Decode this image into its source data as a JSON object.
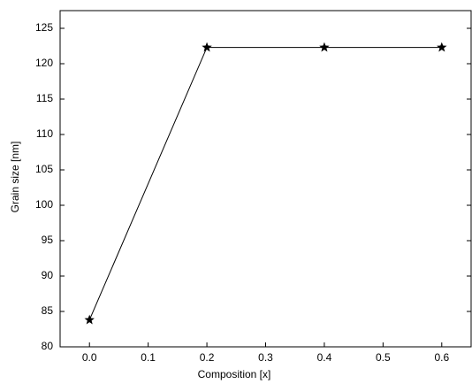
{
  "chart_data": {
    "type": "line",
    "xlabel": "Composition [x]",
    "ylabel": "Grain size [nm]",
    "x": [
      0.0,
      0.2,
      0.4,
      0.6
    ],
    "values": [
      83.8,
      122.3,
      122.3,
      122.3
    ],
    "color": "#000000",
    "marker": "star",
    "xlim": [
      -0.05,
      0.65
    ],
    "xticks": [
      {
        "value": 0,
        "label": "0.0"
      },
      0.1,
      0.2,
      0.3,
      0.4,
      0.5,
      0.6
    ],
    "ylim": [
      80,
      127.5
    ],
    "yticks": [
      80,
      85,
      90,
      95,
      100,
      105,
      110,
      115,
      120,
      125
    ],
    "grid": false
  }
}
